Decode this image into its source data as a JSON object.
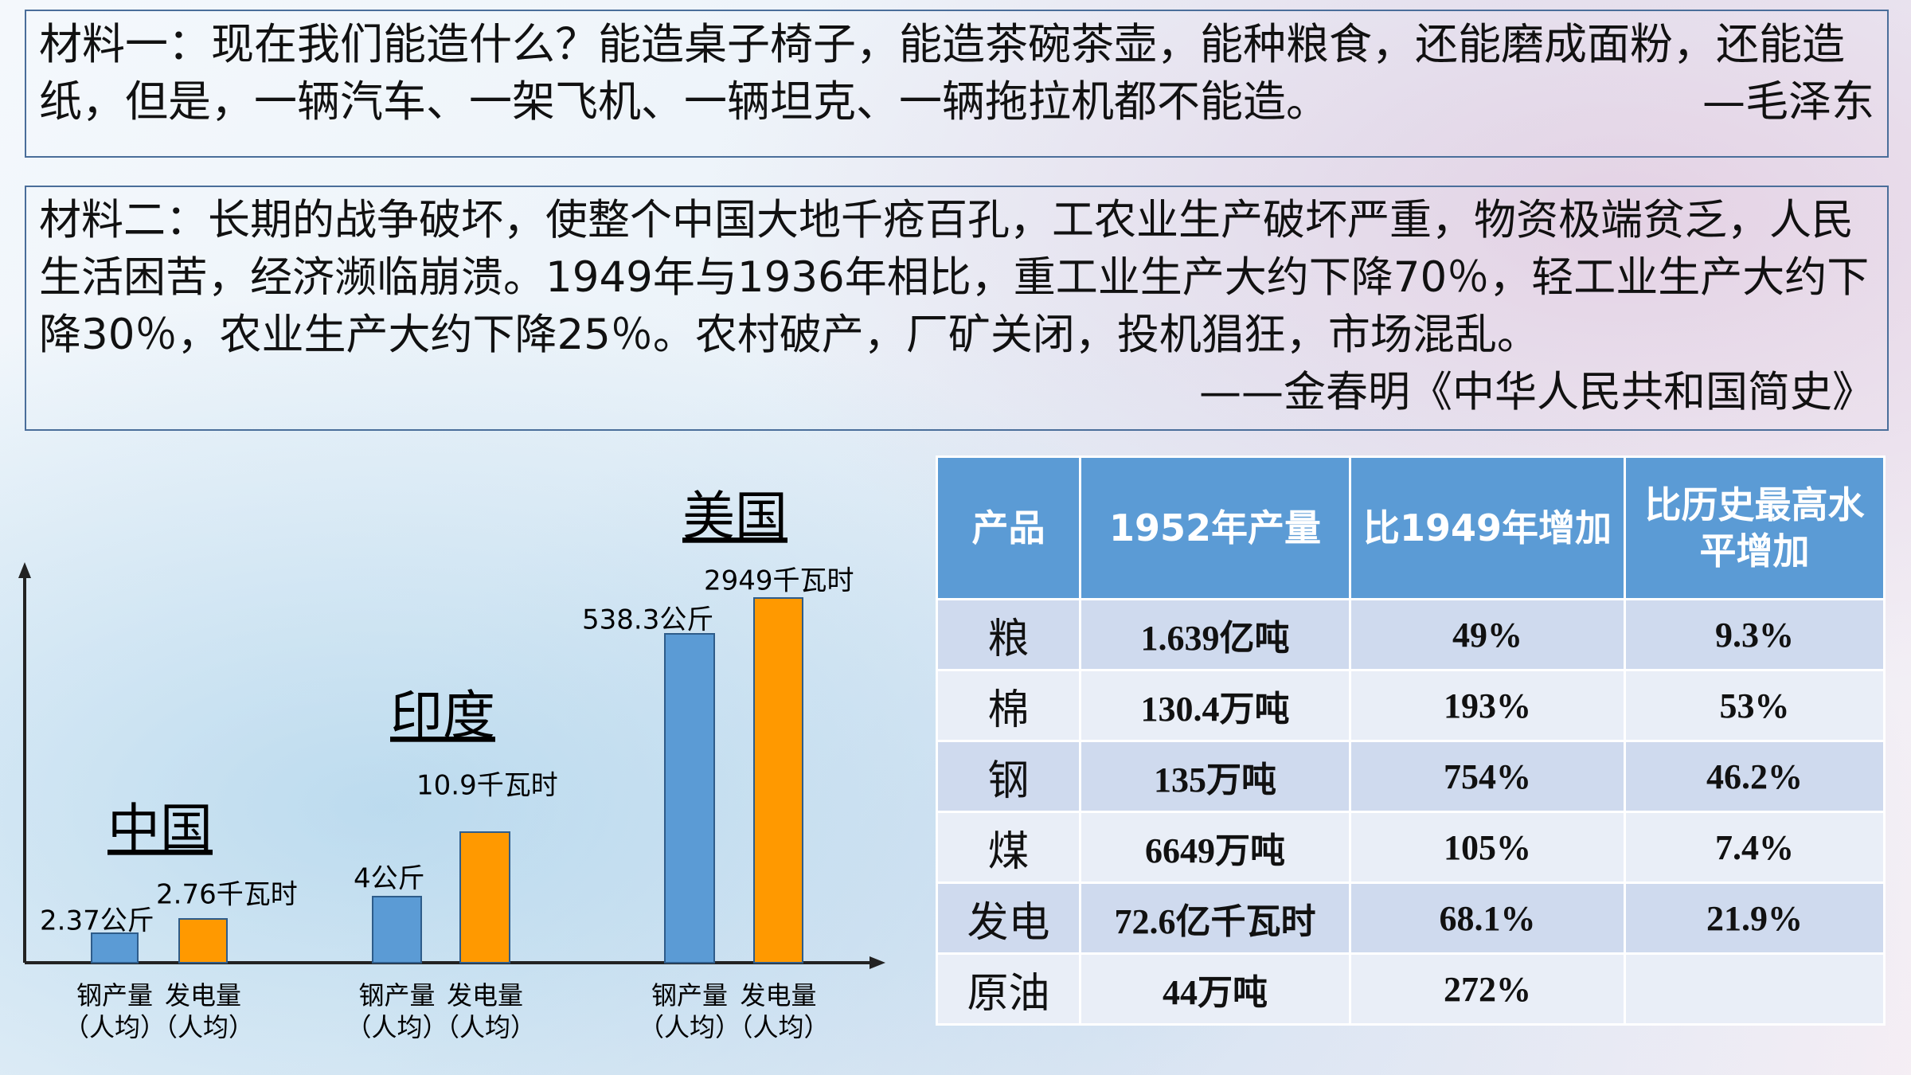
{
  "material1": {
    "text": "材料一：现在我们能造什么？能造桌子椅子，能造茶碗茶壶，能种粮食，还能磨成面粉，还能造纸，但是，一辆汽车、一架飞机、一辆坦克、一辆拖拉机都不能造。",
    "source": "—毛泽东"
  },
  "material2": {
    "text": "材料二：长期的战争破坏，使整个中国大地千疮百孔，工农业生产破坏严重，物资极端贫乏，人民生活困苦，经济濒临崩溃。1949年与1936年相比，重工业生产大约下降70％，轻工业生产大约下降30％，农业生产大约下降25％。农村破产，厂矿关闭，投机猖狂，市场混乱。",
    "source": "——金春明《中华人民共和国简史》"
  },
  "diagram": {
    "groups": [
      {
        "country": "中国",
        "items": [
          {
            "value_label": "2.37公斤",
            "label": [
              "钢产量",
              "（人均）"
            ]
          },
          {
            "value_label": "2.76千瓦时",
            "label": [
              "发电量",
              "（人均）"
            ]
          }
        ]
      },
      {
        "country": "印度",
        "items": [
          {
            "value_label": "4公斤",
            "label": [
              "钢产量",
              "（人均）"
            ]
          },
          {
            "value_label": "10.9千瓦时",
            "label": [
              "发电量",
              "（人均）"
            ]
          }
        ]
      },
      {
        "country": "美国",
        "items": [
          {
            "value_label": "538.3公斤",
            "label": [
              "钢产量",
              "（人均）"
            ]
          },
          {
            "value_label": "2949千瓦时",
            "label": [
              "发电量",
              "（人均）"
            ]
          }
        ]
      }
    ]
  },
  "table": {
    "header": [
      "产品",
      "1952年产量",
      "比1949年增加",
      "比历史最高水平增加"
    ],
    "rows": [
      [
        "粮",
        "1.639亿吨",
        "49%",
        "9.3%"
      ],
      [
        "棉",
        "130.4万吨",
        "193%",
        "53%"
      ],
      [
        "钢",
        "135万吨",
        "754%",
        "46.2%"
      ],
      [
        "煤",
        "6649万吨",
        "105%",
        "7.4%"
      ],
      [
        "发电",
        "72.6亿千瓦时",
        "68.1%",
        "21.9%"
      ],
      [
        "原油",
        "44万吨",
        "272%"
      ]
    ]
  }
}
